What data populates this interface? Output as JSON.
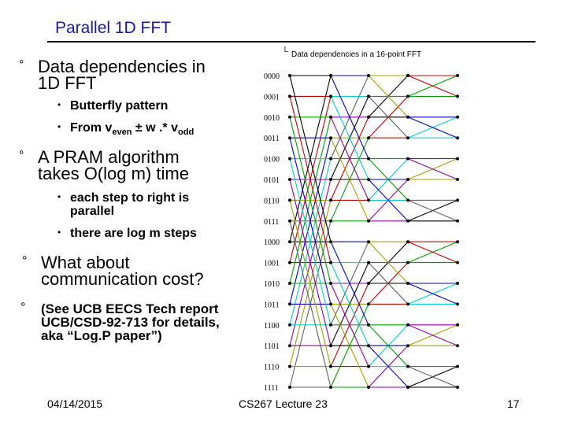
{
  "slide": {
    "title": "Parallel 1D FFT",
    "bullet_marker": "°",
    "sub_marker": "•",
    "bullets": [
      {
        "line1": "Data dependencies in",
        "line2": "1D FFT"
      },
      {
        "line1": "A PRAM algorithm",
        "line2": "takes O(log m) time"
      },
      {
        "line1": "What about",
        "line2": "communication cost?"
      }
    ],
    "sub1": {
      "a": "Butterfly pattern",
      "b_prefix": "From v",
      "b_sub1": "even",
      "b_mid": " ± w .* v",
      "b_sub2": "odd"
    },
    "sub2": {
      "a_line1": "each step to right is",
      "a_line2": "parallel",
      "b": "there are log m steps"
    },
    "note": {
      "line1": "(See UCB EECS Tech report",
      "line2": "UCB/CSD-92-713 for details,",
      "line3": "aka “Log.P paper”)"
    }
  },
  "figure": {
    "caption": "Data dependencies in a 16-point FFT",
    "caption_marker": "└",
    "row_labels": [
      "0000",
      "0001",
      "0010",
      "0011",
      "0100",
      "0101",
      "0110",
      "0111",
      "1000",
      "1001",
      "1010",
      "1011",
      "1100",
      "1101",
      "1110",
      "1111"
    ]
  },
  "footer": {
    "date": "04/14/2015",
    "course": "CS267 Lecture 23",
    "page": "17"
  }
}
